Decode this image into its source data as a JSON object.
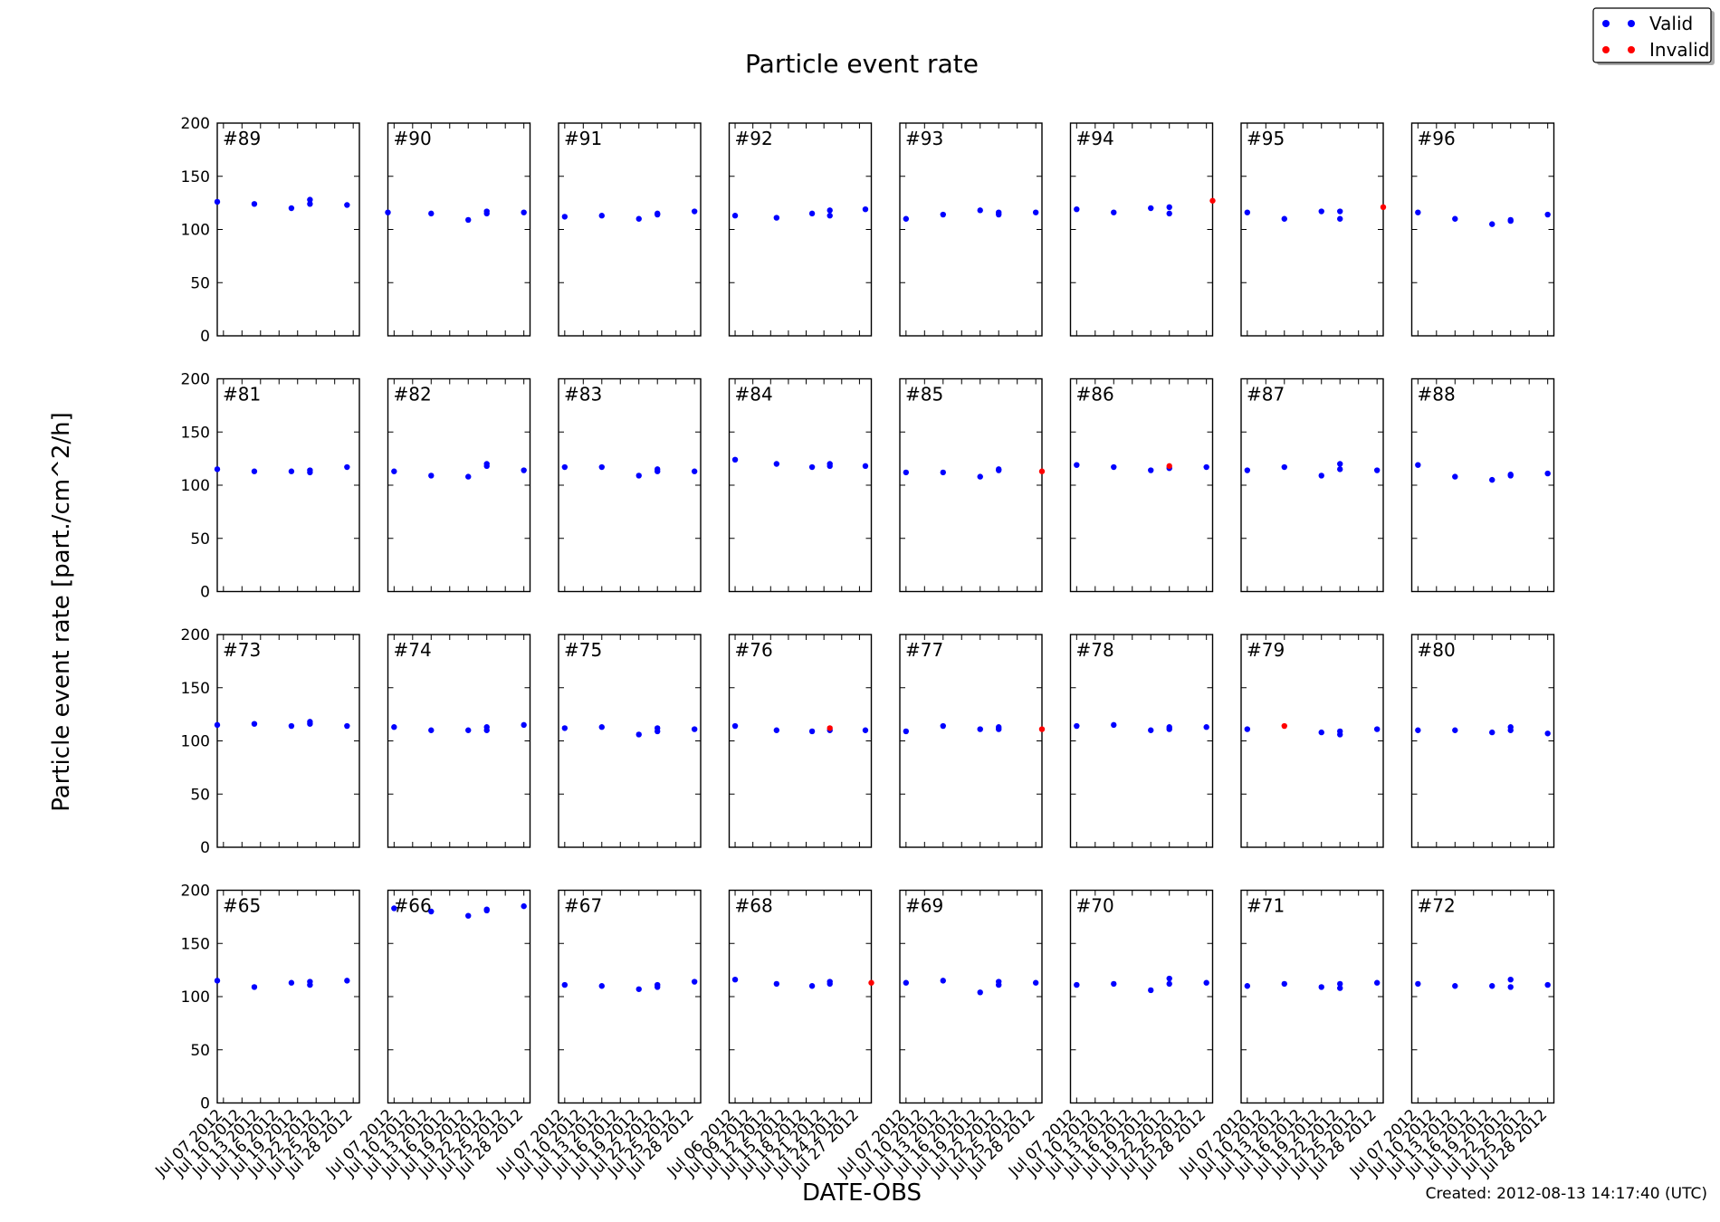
{
  "chart_data": {
    "type": "scatter",
    "title": "Particle event rate",
    "xlabel": "DATE-OBS",
    "ylabel": "Particle event rate [part./cm^2/h]",
    "ylim": [
      0,
      200
    ],
    "yticks": [
      0,
      50,
      100,
      150,
      200
    ],
    "created": "Created: 2012-08-13 14:17:40 (UTC)",
    "legend": {
      "placement": "top-right",
      "entries": [
        {
          "name": "Valid",
          "color": "#0000ff"
        },
        {
          "name": "Invalid",
          "color": "#ff0000"
        }
      ]
    },
    "grid": false,
    "xticklabels_default": [
      "Jul 07 2012",
      "Jul 10 2012",
      "Jul 13 2012",
      "Jul 16 2012",
      "Jul 19 2012",
      "Jul 22 2012",
      "Jul 25 2012",
      "Jul 28 2012"
    ],
    "xticklabels_alt": [
      "Jul 06 2012",
      "Jul 09 2012",
      "Jul 12 2012",
      "Jul 15 2012",
      "Jul 18 2012",
      "Jul 21 2012",
      "Jul 24 2012",
      "Jul 27 2012"
    ],
    "xlim_default": [
      "2012-07-06",
      "2012-07-29"
    ],
    "xlim_alt": [
      "2012-07-05",
      "2012-07-29"
    ],
    "panels": [
      {
        "label": "#89",
        "valid": [
          [
            "2012-07-06",
            126
          ],
          [
            "2012-07-12",
            124
          ],
          [
            "2012-07-18",
            120
          ],
          [
            "2012-07-21",
            128
          ],
          [
            "2012-07-21",
            124
          ],
          [
            "2012-07-27",
            123
          ]
        ],
        "invalid": []
      },
      {
        "label": "#90",
        "valid": [
          [
            "2012-07-06",
            116
          ],
          [
            "2012-07-13",
            115
          ],
          [
            "2012-07-19",
            109
          ],
          [
            "2012-07-22",
            117
          ],
          [
            "2012-07-22",
            115
          ],
          [
            "2012-07-28",
            116
          ]
        ],
        "invalid": []
      },
      {
        "label": "#91",
        "valid": [
          [
            "2012-07-07",
            112
          ],
          [
            "2012-07-13",
            113
          ],
          [
            "2012-07-19",
            110
          ],
          [
            "2012-07-22",
            115
          ],
          [
            "2012-07-22",
            114
          ],
          [
            "2012-07-28",
            117
          ]
        ],
        "invalid": []
      },
      {
        "label": "#92",
        "xaxis": "alt",
        "valid": [
          [
            "2012-07-06",
            113
          ],
          [
            "2012-07-13",
            111
          ],
          [
            "2012-07-19",
            115
          ],
          [
            "2012-07-22",
            118
          ],
          [
            "2012-07-22",
            113
          ],
          [
            "2012-07-28",
            119
          ]
        ],
        "invalid": []
      },
      {
        "label": "#93",
        "valid": [
          [
            "2012-07-07",
            110
          ],
          [
            "2012-07-13",
            114
          ],
          [
            "2012-07-19",
            118
          ],
          [
            "2012-07-22",
            116
          ],
          [
            "2012-07-22",
            114
          ],
          [
            "2012-07-28",
            116
          ]
        ],
        "invalid": []
      },
      {
        "label": "#94",
        "valid": [
          [
            "2012-07-07",
            119
          ],
          [
            "2012-07-13",
            116
          ],
          [
            "2012-07-19",
            120
          ],
          [
            "2012-07-22",
            121
          ],
          [
            "2012-07-22",
            115
          ]
        ],
        "invalid": [
          [
            "2012-07-29",
            127
          ]
        ]
      },
      {
        "label": "#95",
        "valid": [
          [
            "2012-07-07",
            116
          ],
          [
            "2012-07-13",
            110
          ],
          [
            "2012-07-19",
            117
          ],
          [
            "2012-07-22",
            117
          ],
          [
            "2012-07-22",
            110
          ]
        ],
        "invalid": [
          [
            "2012-07-29",
            121
          ]
        ]
      },
      {
        "label": "#96",
        "valid": [
          [
            "2012-07-07",
            116
          ],
          [
            "2012-07-13",
            110
          ],
          [
            "2012-07-19",
            105
          ],
          [
            "2012-07-22",
            109
          ],
          [
            "2012-07-22",
            108
          ],
          [
            "2012-07-28",
            114
          ]
        ],
        "invalid": []
      },
      {
        "label": "#81",
        "valid": [
          [
            "2012-07-06",
            115
          ],
          [
            "2012-07-12",
            113
          ],
          [
            "2012-07-18",
            113
          ],
          [
            "2012-07-21",
            114
          ],
          [
            "2012-07-21",
            112
          ],
          [
            "2012-07-27",
            117
          ]
        ],
        "invalid": []
      },
      {
        "label": "#82",
        "valid": [
          [
            "2012-07-07",
            113
          ],
          [
            "2012-07-13",
            109
          ],
          [
            "2012-07-19",
            108
          ],
          [
            "2012-07-22",
            120
          ],
          [
            "2012-07-22",
            118
          ],
          [
            "2012-07-28",
            114
          ]
        ],
        "invalid": []
      },
      {
        "label": "#83",
        "valid": [
          [
            "2012-07-07",
            117
          ],
          [
            "2012-07-13",
            117
          ],
          [
            "2012-07-19",
            109
          ],
          [
            "2012-07-22",
            115
          ],
          [
            "2012-07-22",
            113
          ],
          [
            "2012-07-28",
            113
          ]
        ],
        "invalid": []
      },
      {
        "label": "#84",
        "xaxis": "alt",
        "valid": [
          [
            "2012-07-06",
            124
          ],
          [
            "2012-07-13",
            120
          ],
          [
            "2012-07-19",
            117
          ],
          [
            "2012-07-22",
            120
          ],
          [
            "2012-07-22",
            118
          ],
          [
            "2012-07-28",
            118
          ]
        ],
        "invalid": []
      },
      {
        "label": "#85",
        "valid": [
          [
            "2012-07-07",
            112
          ],
          [
            "2012-07-13",
            112
          ],
          [
            "2012-07-19",
            108
          ],
          [
            "2012-07-22",
            115
          ],
          [
            "2012-07-22",
            114
          ]
        ],
        "invalid": [
          [
            "2012-07-29",
            113
          ]
        ]
      },
      {
        "label": "#86",
        "valid": [
          [
            "2012-07-07",
            119
          ],
          [
            "2012-07-13",
            117
          ],
          [
            "2012-07-19",
            114
          ],
          [
            "2012-07-22",
            116
          ],
          [
            "2012-07-28",
            117
          ]
        ],
        "invalid": [
          [
            "2012-07-22",
            118
          ]
        ]
      },
      {
        "label": "#87",
        "valid": [
          [
            "2012-07-07",
            114
          ],
          [
            "2012-07-13",
            117
          ],
          [
            "2012-07-19",
            109
          ],
          [
            "2012-07-22",
            120
          ],
          [
            "2012-07-22",
            115
          ],
          [
            "2012-07-28",
            114
          ]
        ],
        "invalid": []
      },
      {
        "label": "#88",
        "valid": [
          [
            "2012-07-07",
            119
          ],
          [
            "2012-07-13",
            108
          ],
          [
            "2012-07-19",
            105
          ],
          [
            "2012-07-22",
            110
          ],
          [
            "2012-07-22",
            109
          ],
          [
            "2012-07-28",
            111
          ]
        ],
        "invalid": []
      },
      {
        "label": "#73",
        "valid": [
          [
            "2012-07-06",
            115
          ],
          [
            "2012-07-12",
            116
          ],
          [
            "2012-07-18",
            114
          ],
          [
            "2012-07-21",
            118
          ],
          [
            "2012-07-21",
            116
          ],
          [
            "2012-07-27",
            114
          ]
        ],
        "invalid": []
      },
      {
        "label": "#74",
        "valid": [
          [
            "2012-07-07",
            113
          ],
          [
            "2012-07-13",
            110
          ],
          [
            "2012-07-19",
            110
          ],
          [
            "2012-07-22",
            113
          ],
          [
            "2012-07-22",
            110
          ],
          [
            "2012-07-28",
            115
          ]
        ],
        "invalid": []
      },
      {
        "label": "#75",
        "valid": [
          [
            "2012-07-07",
            112
          ],
          [
            "2012-07-13",
            113
          ],
          [
            "2012-07-19",
            106
          ],
          [
            "2012-07-22",
            112
          ],
          [
            "2012-07-22",
            109
          ],
          [
            "2012-07-28",
            111
          ]
        ],
        "invalid": []
      },
      {
        "label": "#76",
        "xaxis": "alt",
        "valid": [
          [
            "2012-07-06",
            114
          ],
          [
            "2012-07-13",
            110
          ],
          [
            "2012-07-19",
            109
          ],
          [
            "2012-07-22",
            110
          ],
          [
            "2012-07-28",
            110
          ]
        ],
        "invalid": [
          [
            "2012-07-22",
            112
          ]
        ]
      },
      {
        "label": "#77",
        "valid": [
          [
            "2012-07-07",
            109
          ],
          [
            "2012-07-13",
            114
          ],
          [
            "2012-07-19",
            111
          ],
          [
            "2012-07-22",
            113
          ],
          [
            "2012-07-22",
            111
          ]
        ],
        "invalid": [
          [
            "2012-07-29",
            111
          ]
        ]
      },
      {
        "label": "#78",
        "valid": [
          [
            "2012-07-07",
            114
          ],
          [
            "2012-07-13",
            115
          ],
          [
            "2012-07-19",
            110
          ],
          [
            "2012-07-22",
            113
          ],
          [
            "2012-07-22",
            111
          ],
          [
            "2012-07-28",
            113
          ]
        ],
        "invalid": []
      },
      {
        "label": "#79",
        "valid": [
          [
            "2012-07-07",
            111
          ],
          [
            "2012-07-19",
            108
          ],
          [
            "2012-07-22",
            109
          ],
          [
            "2012-07-22",
            106
          ],
          [
            "2012-07-28",
            111
          ]
        ],
        "invalid": [
          [
            "2012-07-13",
            114
          ]
        ]
      },
      {
        "label": "#80",
        "valid": [
          [
            "2012-07-07",
            110
          ],
          [
            "2012-07-13",
            110
          ],
          [
            "2012-07-19",
            108
          ],
          [
            "2012-07-22",
            113
          ],
          [
            "2012-07-22",
            110
          ],
          [
            "2012-07-28",
            107
          ]
        ],
        "invalid": []
      },
      {
        "label": "#65",
        "valid": [
          [
            "2012-07-06",
            115
          ],
          [
            "2012-07-12",
            109
          ],
          [
            "2012-07-18",
            113
          ],
          [
            "2012-07-21",
            114
          ],
          [
            "2012-07-21",
            111
          ],
          [
            "2012-07-27",
            115
          ]
        ],
        "invalid": []
      },
      {
        "label": "#66",
        "valid": [
          [
            "2012-07-07",
            183
          ],
          [
            "2012-07-13",
            180
          ],
          [
            "2012-07-19",
            176
          ],
          [
            "2012-07-22",
            182
          ],
          [
            "2012-07-22",
            181
          ],
          [
            "2012-07-28",
            185
          ]
        ],
        "invalid": []
      },
      {
        "label": "#67",
        "valid": [
          [
            "2012-07-07",
            111
          ],
          [
            "2012-07-13",
            110
          ],
          [
            "2012-07-19",
            107
          ],
          [
            "2012-07-22",
            111
          ],
          [
            "2012-07-22",
            109
          ],
          [
            "2012-07-28",
            114
          ]
        ],
        "invalid": []
      },
      {
        "label": "#68",
        "xaxis": "alt",
        "valid": [
          [
            "2012-07-06",
            116
          ],
          [
            "2012-07-13",
            112
          ],
          [
            "2012-07-19",
            110
          ],
          [
            "2012-07-22",
            114
          ],
          [
            "2012-07-22",
            112
          ]
        ],
        "invalid": [
          [
            "2012-07-29",
            113
          ]
        ]
      },
      {
        "label": "#69",
        "valid": [
          [
            "2012-07-07",
            113
          ],
          [
            "2012-07-13",
            115
          ],
          [
            "2012-07-19",
            104
          ],
          [
            "2012-07-22",
            114
          ],
          [
            "2012-07-22",
            111
          ],
          [
            "2012-07-28",
            113
          ]
        ],
        "invalid": []
      },
      {
        "label": "#70",
        "valid": [
          [
            "2012-07-07",
            111
          ],
          [
            "2012-07-13",
            112
          ],
          [
            "2012-07-19",
            106
          ],
          [
            "2012-07-22",
            117
          ],
          [
            "2012-07-22",
            112
          ],
          [
            "2012-07-28",
            113
          ]
        ],
        "invalid": []
      },
      {
        "label": "#71",
        "valid": [
          [
            "2012-07-07",
            110
          ],
          [
            "2012-07-13",
            112
          ],
          [
            "2012-07-19",
            109
          ],
          [
            "2012-07-22",
            112
          ],
          [
            "2012-07-22",
            108
          ],
          [
            "2012-07-28",
            113
          ]
        ],
        "invalid": []
      },
      {
        "label": "#72",
        "valid": [
          [
            "2012-07-07",
            112
          ],
          [
            "2012-07-13",
            110
          ],
          [
            "2012-07-19",
            110
          ],
          [
            "2012-07-22",
            116
          ],
          [
            "2012-07-22",
            109
          ],
          [
            "2012-07-28",
            111
          ]
        ],
        "invalid": []
      }
    ]
  }
}
